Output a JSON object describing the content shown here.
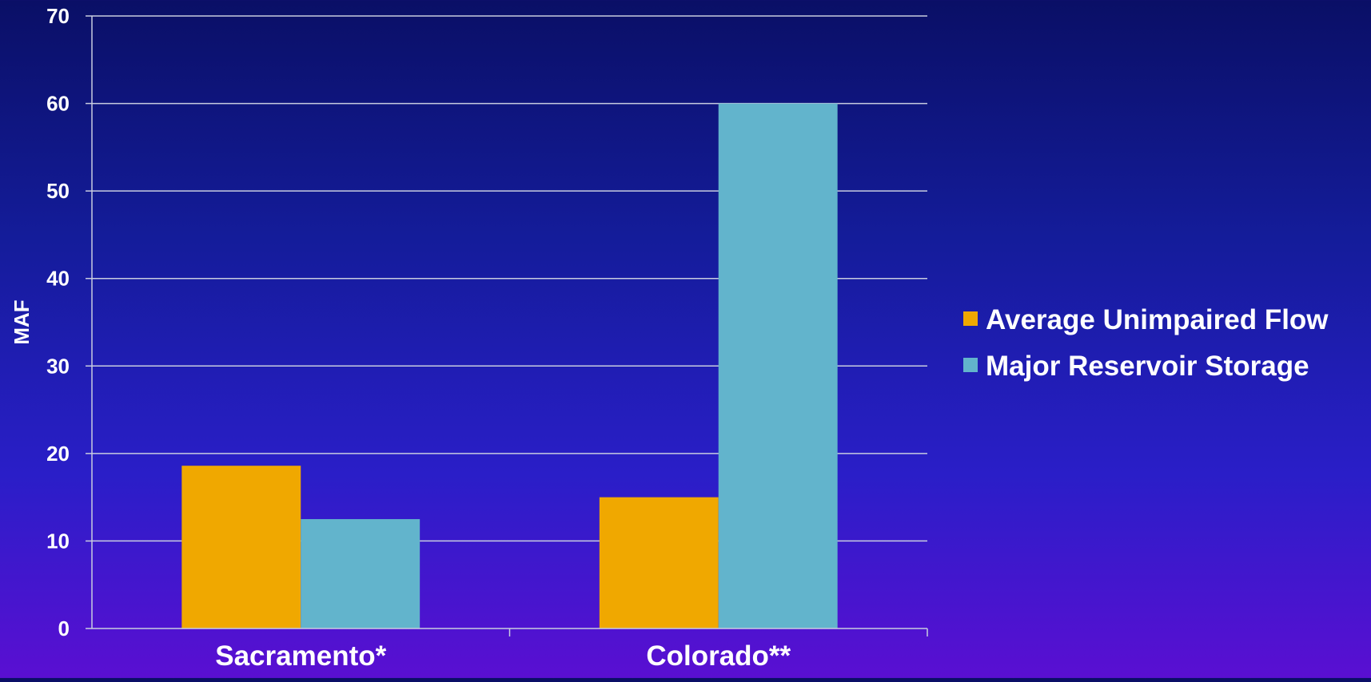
{
  "chart_data": {
    "type": "bar",
    "categories": [
      "Sacramento*",
      "Colorado**"
    ],
    "series": [
      {
        "name": "Average Unimpaired Flow",
        "values": [
          18.6,
          15.0
        ],
        "color": "#f0a800"
      },
      {
        "name": "Major Reservoir Storage",
        "values": [
          12.5,
          60.0
        ],
        "color": "#62b4cc"
      }
    ],
    "ylabel": "MAF",
    "xlabel": "",
    "ylim": [
      0,
      70
    ],
    "yticks": [
      0,
      10,
      20,
      30,
      40,
      50,
      60,
      70
    ],
    "grid": true,
    "legend_position": "right"
  }
}
